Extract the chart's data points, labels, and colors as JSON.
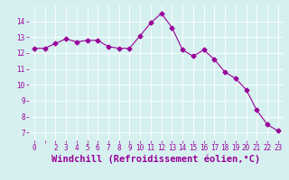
{
  "x": [
    0,
    1,
    2,
    3,
    4,
    5,
    6,
    7,
    8,
    9,
    10,
    11,
    12,
    13,
    14,
    15,
    16,
    17,
    18,
    19,
    20,
    21,
    22,
    23
  ],
  "y": [
    12.3,
    12.3,
    12.6,
    12.9,
    12.7,
    12.8,
    12.8,
    12.4,
    12.3,
    12.3,
    13.1,
    13.9,
    14.5,
    13.6,
    12.2,
    11.8,
    12.2,
    11.6,
    10.8,
    10.4,
    9.7,
    8.4,
    7.5,
    7.1
  ],
  "line_color": "#990099",
  "marker": "D",
  "marker_size": 2.5,
  "bg_color": "#d6f0f0",
  "grid_color": "#b0d8d8",
  "xlabel": "Windchill (Refroidissement éolien,°C)",
  "ylabel": "",
  "ylim": [
    6.5,
    15.0
  ],
  "yticks": [
    7,
    8,
    9,
    10,
    11,
    12,
    13,
    14
  ],
  "xticks": [
    0,
    1,
    2,
    3,
    4,
    5,
    6,
    7,
    8,
    9,
    10,
    11,
    12,
    13,
    14,
    15,
    16,
    17,
    18,
    19,
    20,
    21,
    22,
    23
  ],
  "tick_label_size": 5.5,
  "xlabel_size": 7.5,
  "tick_color": "#990099",
  "label_color": "#990099",
  "xlim": [
    -0.5,
    23.5
  ]
}
